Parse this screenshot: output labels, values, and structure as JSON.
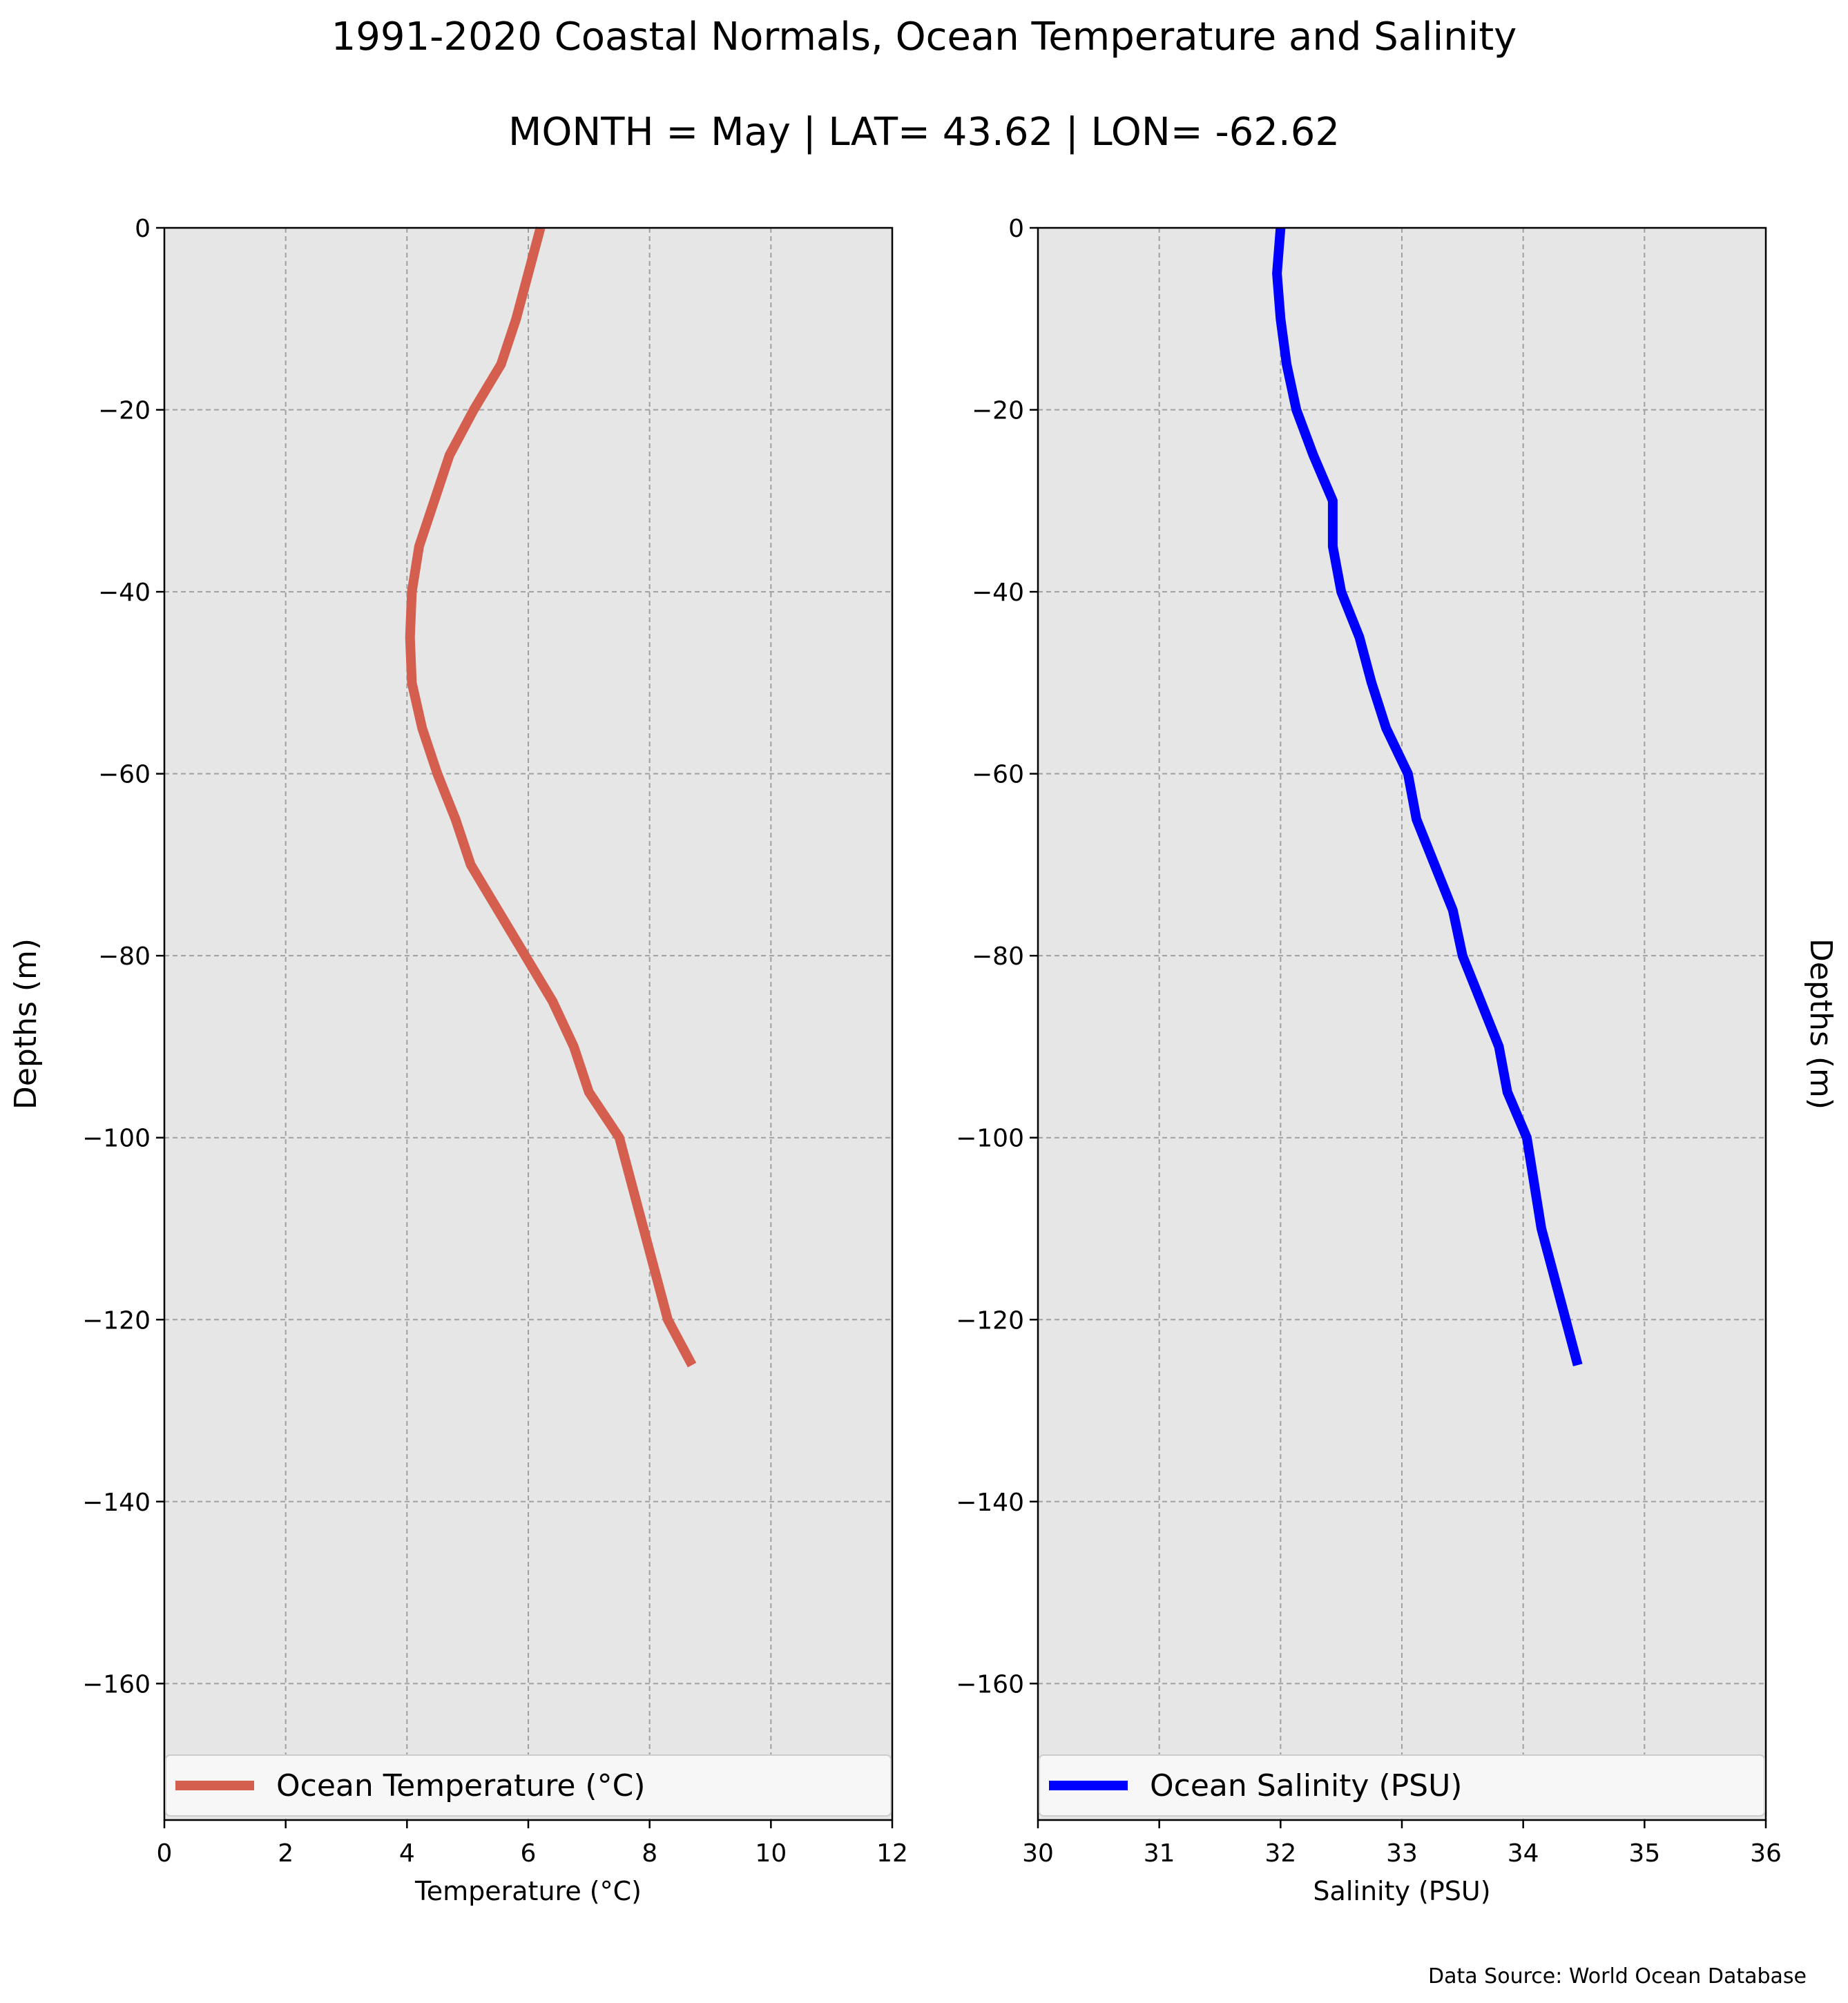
{
  "figure": {
    "title": "1991-2020 Coastal Normals, Ocean Temperature and Salinity",
    "subtitle": "MONTH = May | LAT= 43.62 | LON= -62.62",
    "source_note": "Data Source: World Ocean Database"
  },
  "chart_data": [
    {
      "type": "line",
      "orientation": "profile",
      "xlabel": "Temperature (°C)",
      "ylabel": "Depths (m)",
      "xlim": [
        0,
        12
      ],
      "ylim": [
        -175,
        0
      ],
      "xticks": [
        "0",
        "2",
        "4",
        "6",
        "8",
        "10",
        "12"
      ],
      "yticks": [
        "0",
        "−20",
        "−40",
        "−60",
        "−80",
        "−100",
        "−120",
        "−140",
        "−160"
      ],
      "grid": true,
      "legend_position": "bottom",
      "series": [
        {
          "name": "Ocean Temperature (°C)",
          "color": "#d45f4f",
          "x": [
            6.2,
            6.0,
            5.8,
            5.55,
            5.1,
            4.7,
            4.45,
            4.2,
            4.08,
            4.05,
            4.08,
            4.25,
            4.5,
            4.8,
            5.05,
            5.5,
            5.95,
            6.4,
            6.75,
            7.0,
            7.5,
            7.9,
            8.3,
            8.7
          ],
          "y": [
            0,
            -5,
            -10,
            -15,
            -20,
            -25,
            -30,
            -35,
            -40,
            -45,
            -50,
            -55,
            -60,
            -65,
            -70,
            -75,
            -80,
            -85,
            -90,
            -95,
            -100,
            -110,
            -120,
            -125
          ]
        }
      ]
    },
    {
      "type": "line",
      "orientation": "profile",
      "xlabel": "Salinity (PSU)",
      "ylabel": "Depths (m)",
      "xlim": [
        30,
        36
      ],
      "ylim": [
        -175,
        0
      ],
      "xticks": [
        "30",
        "31",
        "32",
        "33",
        "34",
        "35",
        "36"
      ],
      "yticks": [
        "0",
        "−20",
        "−40",
        "−60",
        "−80",
        "−100",
        "−120",
        "−140",
        "−160"
      ],
      "grid": true,
      "legend_position": "bottom",
      "series": [
        {
          "name": "Ocean Salinity (PSU)",
          "color": "#0000ff",
          "x": [
            32.0,
            31.97,
            32.0,
            32.05,
            32.13,
            32.27,
            32.43,
            32.43,
            32.5,
            32.65,
            32.75,
            32.87,
            33.05,
            33.12,
            33.27,
            33.42,
            33.5,
            33.8,
            33.87,
            34.03,
            34.15,
            34.35,
            34.45
          ],
          "y": [
            0,
            -5,
            -10,
            -15,
            -20,
            -25,
            -30,
            -35,
            -40,
            -45,
            -50,
            -55,
            -60,
            -65,
            -70,
            -75,
            -80,
            -90,
            -95,
            -100,
            -110,
            -120,
            -125
          ]
        }
      ]
    }
  ],
  "colors": {
    "plot_background": "#e6e6e6",
    "grid": "#a0a0a0",
    "legend_background": "#f7f7f7"
  }
}
